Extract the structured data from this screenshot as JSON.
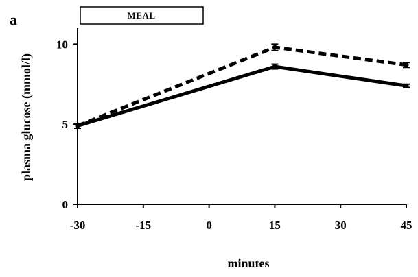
{
  "chart_data": {
    "type": "line",
    "panel_label": "a",
    "annotation": "MEAL",
    "xlabel": "minutes",
    "ylabel": "plasma glucose (mmol/l)",
    "x": [
      -30,
      15,
      45
    ],
    "xticks": [
      -30,
      -15,
      0,
      15,
      30,
      45
    ],
    "yticks": [
      0,
      5,
      10
    ],
    "xlim": [
      -30,
      45
    ],
    "ylim": [
      0,
      11
    ],
    "grid": false,
    "series": [
      {
        "style": "dashed",
        "color": "#000000",
        "values": [
          4.9,
          9.8,
          8.7
        ],
        "errors": [
          0.15,
          0.2,
          0.15
        ]
      },
      {
        "style": "solid",
        "color": "#000000",
        "values": [
          4.9,
          8.6,
          7.4
        ],
        "errors": [
          0.15,
          0.15,
          0.1
        ]
      }
    ]
  }
}
